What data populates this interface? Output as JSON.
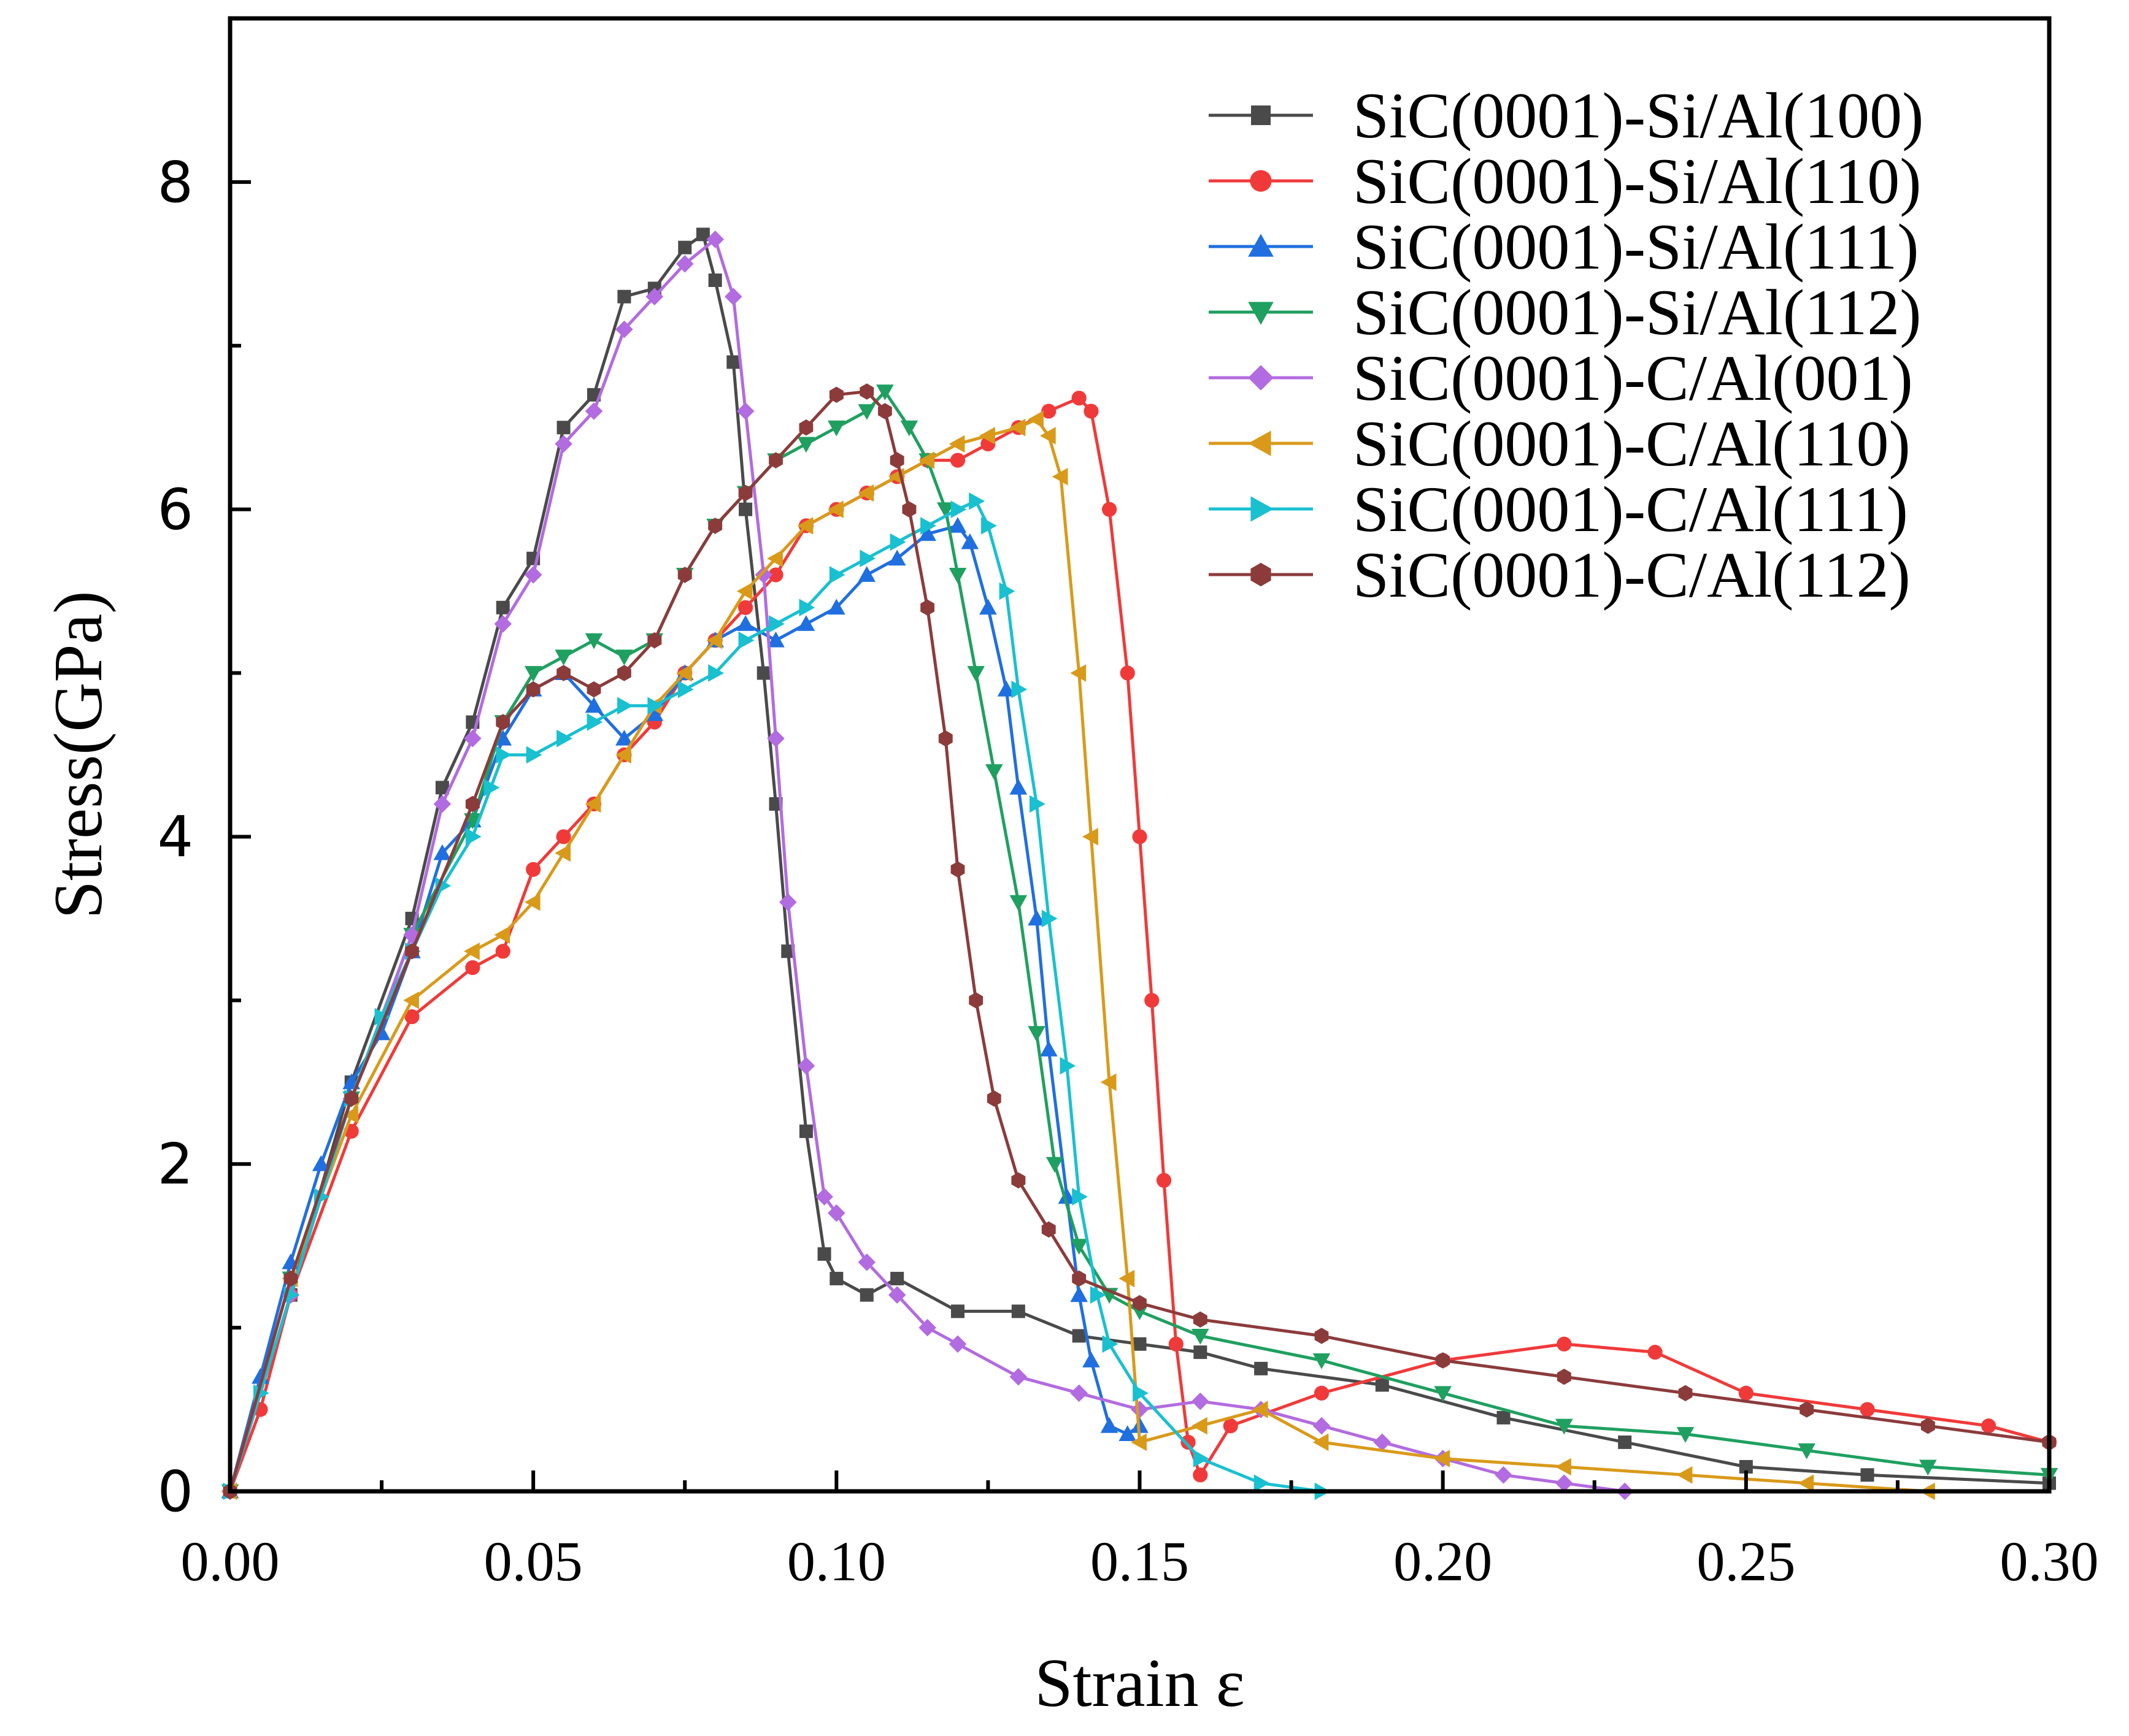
{
  "chart_data": {
    "type": "line",
    "title": "",
    "xlabel": "Strain ε",
    "ylabel": "Stress(GPa)",
    "xlim": [
      0,
      0.3
    ],
    "ylim": [
      0,
      9.0
    ],
    "xticks": [
      "0.00",
      "0.05",
      "0.10",
      "0.15",
      "0.20",
      "0.25",
      "0.30"
    ],
    "yticks": [
      "0",
      "2",
      "4",
      "6",
      "8"
    ],
    "grid": false,
    "legend_position": "top-right",
    "series": [
      {
        "name": "SiC(0001)-Si/Al(100)",
        "color": "#4a4a4a",
        "marker": "square",
        "x": [
          0,
          0.01,
          0.02,
          0.03,
          0.035,
          0.04,
          0.045,
          0.05,
          0.055,
          0.06,
          0.065,
          0.07,
          0.075,
          0.078,
          0.08,
          0.083,
          0.085,
          0.088,
          0.09,
          0.092,
          0.095,
          0.098,
          0.1,
          0.105,
          0.11,
          0.12,
          0.13,
          0.14,
          0.15,
          0.16,
          0.17,
          0.19,
          0.21,
          0.23,
          0.25,
          0.27,
          0.3
        ],
        "y": [
          0,
          1.2,
          2.5,
          3.5,
          4.3,
          4.7,
          5.4,
          5.7,
          6.5,
          6.7,
          7.3,
          7.35,
          7.6,
          7.68,
          7.4,
          6.9,
          6.0,
          5.0,
          4.2,
          3.3,
          2.2,
          1.45,
          1.3,
          1.2,
          1.3,
          1.1,
          1.1,
          0.95,
          0.9,
          0.85,
          0.75,
          0.65,
          0.45,
          0.3,
          0.15,
          0.1,
          0.05
        ]
      },
      {
        "name": "SiC(0001)-Si/Al(110)",
        "color": "#f03a3a",
        "marker": "circle",
        "x": [
          0,
          0.005,
          0.01,
          0.02,
          0.03,
          0.04,
          0.045,
          0.05,
          0.055,
          0.06,
          0.065,
          0.07,
          0.075,
          0.08,
          0.085,
          0.09,
          0.095,
          0.1,
          0.105,
          0.11,
          0.115,
          0.12,
          0.125,
          0.13,
          0.135,
          0.14,
          0.142,
          0.145,
          0.148,
          0.15,
          0.152,
          0.154,
          0.156,
          0.158,
          0.16,
          0.165,
          0.18,
          0.2,
          0.22,
          0.235,
          0.25,
          0.27,
          0.29,
          0.3
        ],
        "y": [
          0,
          0.5,
          1.2,
          2.2,
          2.9,
          3.2,
          3.3,
          3.8,
          4.0,
          4.2,
          4.5,
          4.7,
          5.0,
          5.2,
          5.4,
          5.6,
          5.9,
          6.0,
          6.1,
          6.2,
          6.3,
          6.3,
          6.4,
          6.5,
          6.6,
          6.68,
          6.6,
          6.0,
          5.0,
          4.0,
          3.0,
          1.9,
          0.9,
          0.3,
          0.1,
          0.4,
          0.6,
          0.8,
          0.9,
          0.85,
          0.6,
          0.5,
          0.4,
          0.3
        ]
      },
      {
        "name": "SiC(0001)-Si/Al(111)",
        "color": "#1f6fe0",
        "marker": "triangle-up",
        "x": [
          0,
          0.005,
          0.01,
          0.015,
          0.02,
          0.025,
          0.03,
          0.035,
          0.04,
          0.045,
          0.05,
          0.055,
          0.06,
          0.065,
          0.07,
          0.075,
          0.08,
          0.085,
          0.09,
          0.095,
          0.1,
          0.105,
          0.11,
          0.115,
          0.12,
          0.122,
          0.125,
          0.128,
          0.13,
          0.133,
          0.135,
          0.138,
          0.14,
          0.142,
          0.145,
          0.148,
          0.15
        ],
        "y": [
          0,
          0.7,
          1.4,
          2.0,
          2.5,
          2.8,
          3.3,
          3.9,
          4.1,
          4.6,
          4.9,
          5.0,
          4.8,
          4.6,
          4.75,
          5.0,
          5.2,
          5.3,
          5.2,
          5.3,
          5.4,
          5.6,
          5.7,
          5.85,
          5.9,
          5.8,
          5.4,
          4.9,
          4.3,
          3.5,
          2.7,
          1.8,
          1.2,
          0.8,
          0.4,
          0.35,
          0.4
        ]
      },
      {
        "name": "SiC(0001)-Si/Al(112)",
        "color": "#1fa060",
        "marker": "triangle-down",
        "x": [
          0,
          0.01,
          0.02,
          0.03,
          0.04,
          0.045,
          0.05,
          0.055,
          0.06,
          0.065,
          0.07,
          0.075,
          0.08,
          0.085,
          0.09,
          0.095,
          0.1,
          0.105,
          0.108,
          0.112,
          0.115,
          0.118,
          0.12,
          0.123,
          0.126,
          0.13,
          0.133,
          0.136,
          0.14,
          0.145,
          0.15,
          0.16,
          0.18,
          0.2,
          0.22,
          0.24,
          0.26,
          0.28,
          0.3
        ],
        "y": [
          0,
          1.3,
          2.4,
          3.4,
          4.1,
          4.7,
          5.0,
          5.1,
          5.2,
          5.1,
          5.2,
          5.6,
          5.9,
          6.1,
          6.3,
          6.4,
          6.5,
          6.6,
          6.72,
          6.5,
          6.3,
          6.0,
          5.6,
          5.0,
          4.4,
          3.6,
          2.8,
          2.0,
          1.5,
          1.2,
          1.1,
          0.95,
          0.8,
          0.6,
          0.4,
          0.35,
          0.25,
          0.15,
          0.1
        ]
      },
      {
        "name": "SiC(0001)-C/Al(001)",
        "color": "#b26be0",
        "marker": "diamond",
        "x": [
          0,
          0.01,
          0.02,
          0.03,
          0.035,
          0.04,
          0.045,
          0.05,
          0.055,
          0.06,
          0.065,
          0.07,
          0.075,
          0.08,
          0.083,
          0.085,
          0.088,
          0.09,
          0.092,
          0.095,
          0.098,
          0.1,
          0.105,
          0.11,
          0.115,
          0.12,
          0.13,
          0.14,
          0.15,
          0.16,
          0.17,
          0.18,
          0.19,
          0.2,
          0.21,
          0.22,
          0.23
        ],
        "y": [
          0,
          1.2,
          2.4,
          3.4,
          4.2,
          4.6,
          5.3,
          5.6,
          6.4,
          6.6,
          7.1,
          7.3,
          7.5,
          7.65,
          7.3,
          6.6,
          5.6,
          4.6,
          3.6,
          2.6,
          1.8,
          1.7,
          1.4,
          1.2,
          1.0,
          0.9,
          0.7,
          0.6,
          0.5,
          0.55,
          0.5,
          0.4,
          0.3,
          0.2,
          0.1,
          0.05,
          0
        ]
      },
      {
        "name": "SiC(0001)-C/Al(110)",
        "color": "#d99a1a",
        "marker": "triangle-left",
        "x": [
          0,
          0.01,
          0.02,
          0.03,
          0.04,
          0.045,
          0.05,
          0.055,
          0.06,
          0.065,
          0.07,
          0.075,
          0.08,
          0.085,
          0.09,
          0.095,
          0.1,
          0.105,
          0.11,
          0.115,
          0.12,
          0.125,
          0.13,
          0.133,
          0.135,
          0.137,
          0.14,
          0.142,
          0.145,
          0.148,
          0.15,
          0.16,
          0.17,
          0.18,
          0.2,
          0.22,
          0.24,
          0.26,
          0.28
        ],
        "y": [
          0,
          1.3,
          2.3,
          3.0,
          3.3,
          3.4,
          3.6,
          3.9,
          4.2,
          4.5,
          4.8,
          5.0,
          5.2,
          5.5,
          5.7,
          5.9,
          6.0,
          6.1,
          6.2,
          6.3,
          6.4,
          6.45,
          6.5,
          6.55,
          6.45,
          6.2,
          5.0,
          4.0,
          2.5,
          1.3,
          0.3,
          0.4,
          0.5,
          0.3,
          0.2,
          0.15,
          0.1,
          0.05,
          0
        ]
      },
      {
        "name": "SiC(0001)-C/Al(111)",
        "color": "#19c0d0",
        "marker": "triangle-right",
        "x": [
          0,
          0.005,
          0.01,
          0.015,
          0.02,
          0.025,
          0.03,
          0.035,
          0.04,
          0.043,
          0.045,
          0.05,
          0.055,
          0.06,
          0.065,
          0.07,
          0.075,
          0.08,
          0.085,
          0.09,
          0.095,
          0.1,
          0.105,
          0.11,
          0.115,
          0.12,
          0.123,
          0.125,
          0.128,
          0.13,
          0.133,
          0.135,
          0.138,
          0.14,
          0.143,
          0.145,
          0.15,
          0.16,
          0.17,
          0.18
        ],
        "y": [
          0,
          0.6,
          1.2,
          1.8,
          2.4,
          2.9,
          3.3,
          3.7,
          4.0,
          4.3,
          4.5,
          4.5,
          4.6,
          4.7,
          4.8,
          4.8,
          4.9,
          5.0,
          5.2,
          5.3,
          5.4,
          5.6,
          5.7,
          5.8,
          5.9,
          6.0,
          6.05,
          5.9,
          5.5,
          4.9,
          4.2,
          3.5,
          2.6,
          1.8,
          1.2,
          0.9,
          0.6,
          0.2,
          0.05,
          0
        ]
      },
      {
        "name": "SiC(0001)-C/Al(112)",
        "color": "#8c3b3b",
        "marker": "hexagon",
        "x": [
          0,
          0.01,
          0.02,
          0.03,
          0.04,
          0.045,
          0.05,
          0.055,
          0.06,
          0.065,
          0.07,
          0.075,
          0.08,
          0.085,
          0.09,
          0.095,
          0.1,
          0.105,
          0.108,
          0.11,
          0.112,
          0.115,
          0.118,
          0.12,
          0.123,
          0.126,
          0.13,
          0.135,
          0.14,
          0.15,
          0.16,
          0.18,
          0.2,
          0.22,
          0.24,
          0.26,
          0.28,
          0.3
        ],
        "y": [
          0,
          1.3,
          2.4,
          3.3,
          4.2,
          4.7,
          4.9,
          5.0,
          4.9,
          5.0,
          5.2,
          5.6,
          5.9,
          6.1,
          6.3,
          6.5,
          6.7,
          6.72,
          6.6,
          6.3,
          6.0,
          5.4,
          4.6,
          3.8,
          3.0,
          2.4,
          1.9,
          1.6,
          1.3,
          1.15,
          1.05,
          0.95,
          0.8,
          0.7,
          0.6,
          0.5,
          0.4,
          0.3
        ]
      }
    ]
  }
}
